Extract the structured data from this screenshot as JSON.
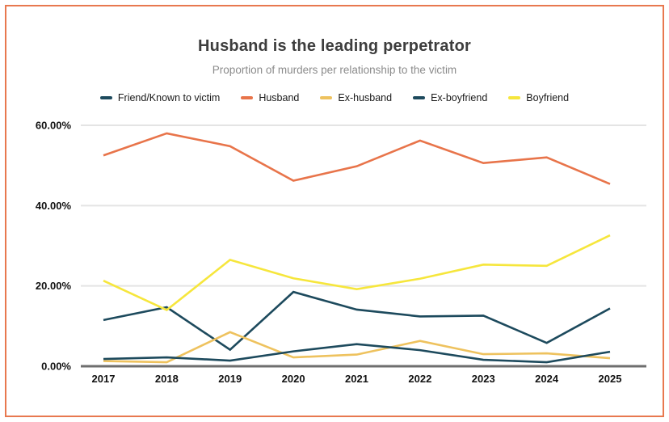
{
  "frame": {
    "border_color": "#e8784f"
  },
  "chart_data": {
    "type": "line",
    "title": "Husband is the leading perpetrator",
    "subtitle": "Proportion of murders per relationship to the victim",
    "categories": [
      "2017",
      "2018",
      "2019",
      "2020",
      "2021",
      "2022",
      "2023",
      "2024",
      "2025"
    ],
    "series": [
      {
        "name": "Friend/Known to victim",
        "color": "#1d4a5d",
        "values": [
          11.5,
          14.7,
          4.1,
          18.5,
          14.1,
          12.4,
          12.6,
          5.8,
          14.4
        ]
      },
      {
        "name": "Husband",
        "color": "#e8744a",
        "values": [
          52.5,
          58.0,
          54.8,
          46.2,
          49.8,
          56.2,
          50.6,
          52.0,
          45.4
        ]
      },
      {
        "name": "Ex-husband",
        "color": "#eec25e",
        "values": [
          1.3,
          1.0,
          8.5,
          2.2,
          2.9,
          6.3,
          3.0,
          3.2,
          2.0
        ]
      },
      {
        "name": "Ex-boyfriend",
        "color": "#1d4a5d",
        "values": [
          1.8,
          2.2,
          1.4,
          3.7,
          5.5,
          4.0,
          1.6,
          1.0,
          3.6
        ]
      },
      {
        "name": "Boyfriend",
        "color": "#f6e63c",
        "values": [
          21.3,
          14.0,
          26.5,
          21.9,
          19.2,
          21.8,
          25.3,
          25.0,
          32.6
        ]
      }
    ],
    "y_ticks": [
      {
        "label": "60.00%",
        "value": 60
      },
      {
        "label": "40.00%",
        "value": 40
      },
      {
        "label": "20.00%",
        "value": 20
      },
      {
        "label": "0.00%",
        "value": 0
      }
    ],
    "ylim": [
      0,
      60
    ],
    "grid": true,
    "legend_position": "top",
    "colors": {
      "grid_line": "#e4e4e4",
      "zero_axis": "#6e6e6e",
      "title_text": "#3d3d3d",
      "subtitle_text": "#8b8b8b"
    }
  }
}
